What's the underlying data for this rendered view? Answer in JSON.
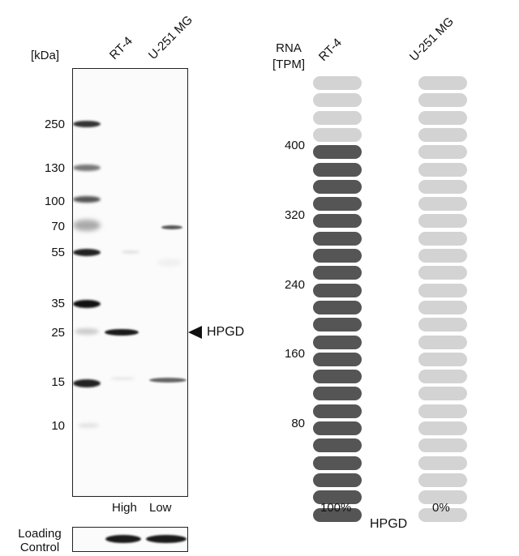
{
  "western_blot": {
    "unit_label": "[kDa]",
    "lanes": [
      "RT-4",
      "U-251 MG"
    ],
    "markers": [
      "250",
      "130",
      "100",
      "70",
      "55",
      "35",
      "25",
      "15",
      "10"
    ],
    "target_label": "HPGD",
    "expression_labels": [
      "High",
      "Low"
    ],
    "loading_control_label_line1": "Loading",
    "loading_control_label_line2": "Control"
  },
  "rna": {
    "header_line1": "RNA",
    "header_line2": "[TPM]",
    "cell_lines": [
      "RT-4",
      "U-251 MG"
    ],
    "scale_ticks": [
      "400",
      "320",
      "240",
      "160",
      "80"
    ],
    "gene": "HPGD",
    "percent_labels": [
      "100%",
      "0%"
    ],
    "columns": [
      {
        "name": "RT-4",
        "filled_fraction": 0.84,
        "fill_color": "#555555",
        "empty_color": "#d3d3d3"
      },
      {
        "name": "U-251 MG",
        "filled_fraction": 0.0,
        "fill_color": "#555555",
        "empty_color": "#d3d3d3"
      }
    ]
  }
}
